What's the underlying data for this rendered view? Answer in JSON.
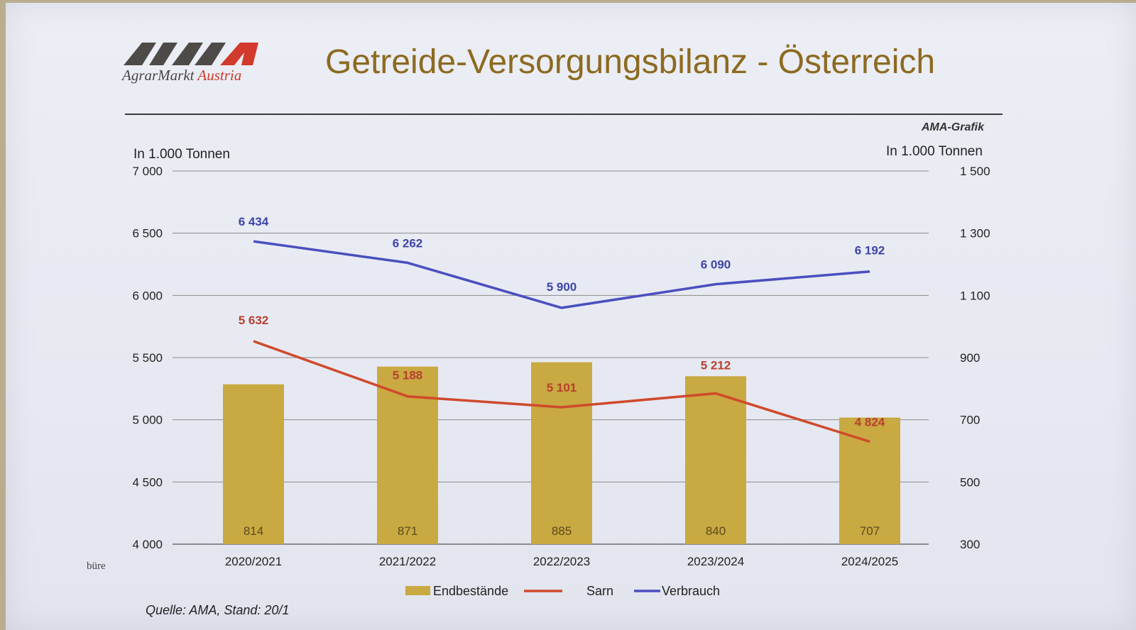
{
  "logo": {
    "mark": "AMA",
    "subtitle_part1": "AgrarMarkt",
    "subtitle_part2": "Austria"
  },
  "title": "Getreide-Versorgungsbilanz - Österreich",
  "credit": "AMA-Grafik",
  "left_axis_unit": "In 1.000 Tonnen",
  "right_axis_unit": "In 1.000 Tonnen",
  "source": "Quelle: AMA, Stand: 20/1",
  "stray_text": "büre",
  "colors": {
    "bars": "#c9a941",
    "ernte_line": "#cf4a2c",
    "ernte_label": "#b8402e",
    "verbrauch_line": "#4a4fbf",
    "verbrauch_label": "#3c44a8",
    "bar_label": "#5a4a1e"
  },
  "chart_data": {
    "type": "bar+line",
    "categories": [
      "2020/2021",
      "2021/2022",
      "2022/2023",
      "2023/2024",
      "2024/2025"
    ],
    "left_axis": {
      "min": 4000,
      "max": 7000,
      "ticks": [
        4000,
        4500,
        5000,
        5500,
        6000,
        6500,
        7000
      ],
      "tick_labels": [
        "4 000",
        "4 500",
        "5 000",
        "5 500",
        "6 000",
        "6 500",
        "7 000"
      ]
    },
    "right_axis": {
      "min": 300,
      "max": 1500,
      "ticks": [
        300,
        500,
        700,
        900,
        1100,
        1300,
        1500
      ],
      "tick_labels": [
        "300",
        "500",
        "700",
        "900",
        "1 100",
        "1 300",
        "1 500"
      ]
    },
    "grid": true,
    "legend_position": "bottom",
    "series": [
      {
        "name": "Endbestände",
        "type": "bar",
        "axis": "right",
        "values": [
          814,
          871,
          885,
          840,
          707
        ],
        "labels": [
          "814",
          "871",
          "885",
          "840",
          "707"
        ]
      },
      {
        "name": "Sarn",
        "type": "line",
        "axis": "left",
        "values": [
          5632,
          5188,
          5101,
          5212,
          4824
        ],
        "labels": [
          "5 632",
          "5 188",
          "5 101",
          "5 212",
          "4 824"
        ]
      },
      {
        "name": "Verbrauch",
        "type": "line",
        "axis": "left",
        "values": [
          6434,
          6262,
          5900,
          6090,
          6192
        ],
        "labels": [
          "6 434",
          "6 262",
          "5 900",
          "6 090",
          "6 192"
        ]
      }
    ]
  }
}
